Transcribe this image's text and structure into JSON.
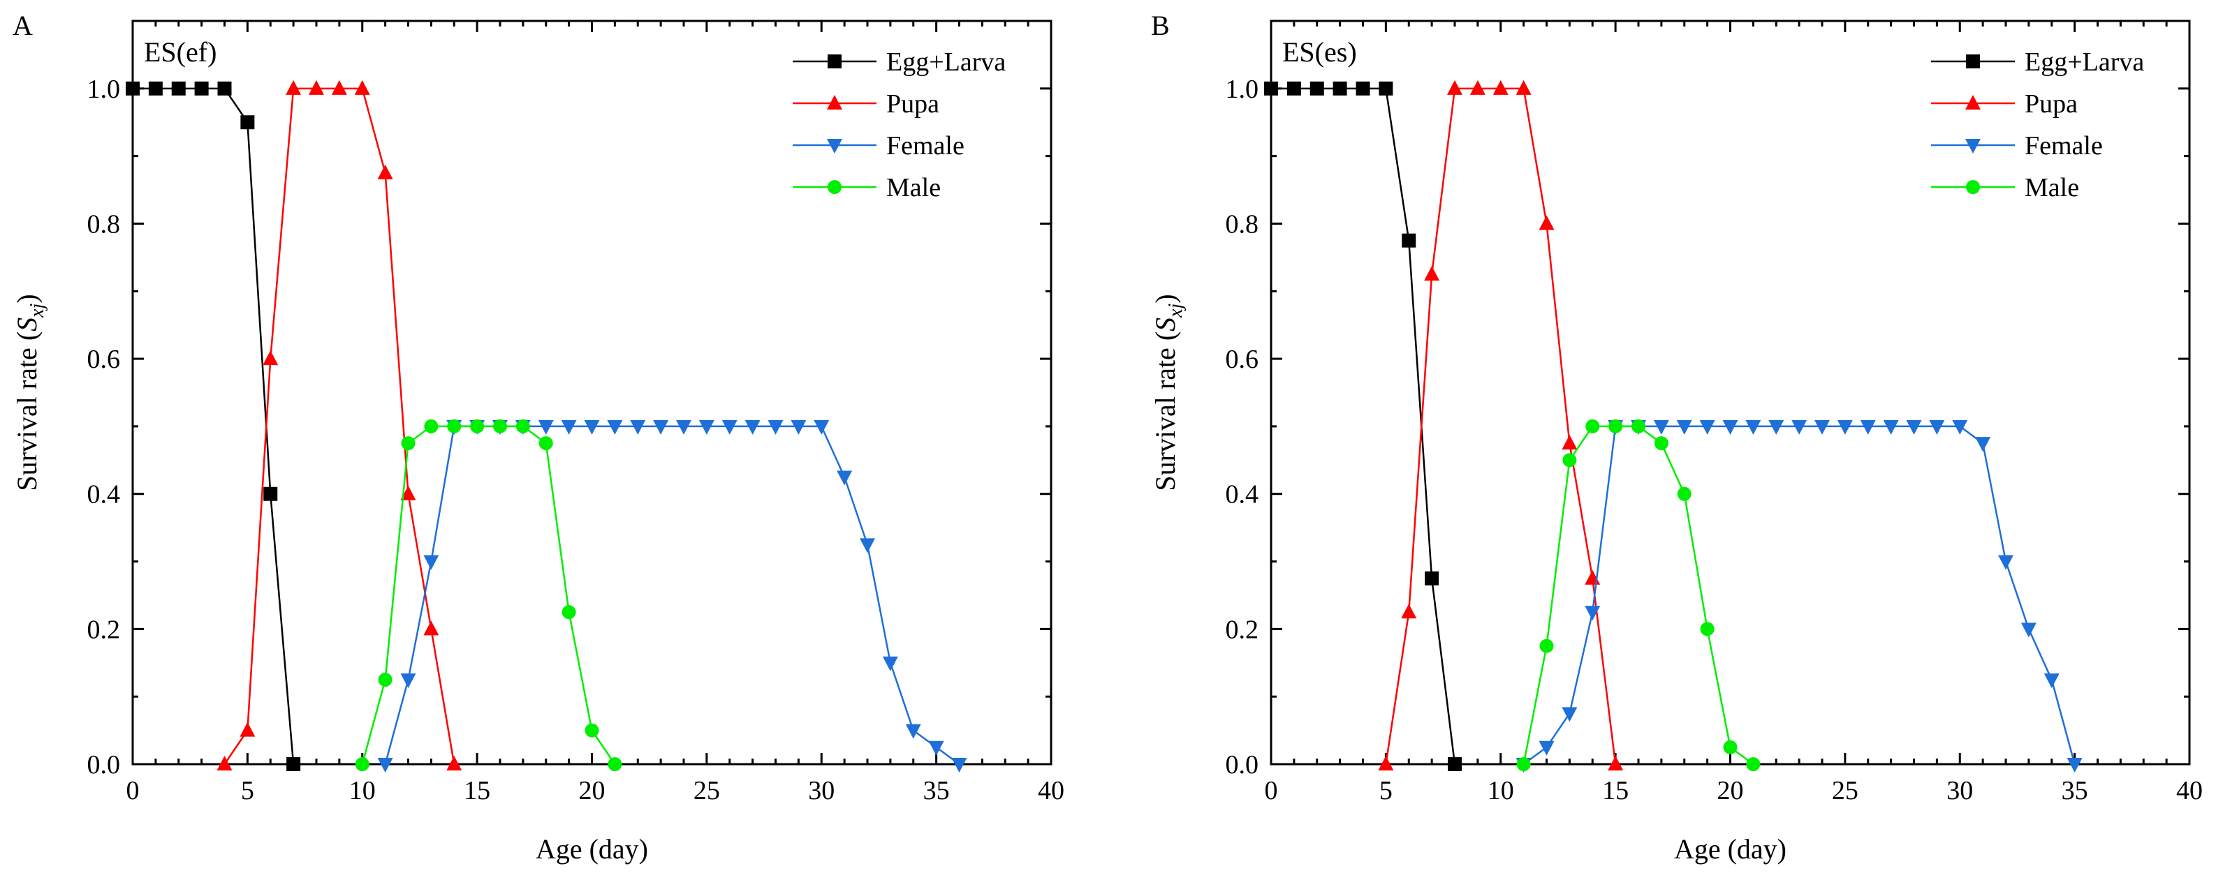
{
  "chart_data": [
    {
      "type": "line",
      "panel_label": "A",
      "treatment_label": "ES(ef)",
      "xlabel": "Age (day)",
      "ylabel_main": "Survival rate (",
      "ylabel_var": "S",
      "ylabel_sub": "xj",
      "ylabel_close": ")",
      "xlim": [
        0,
        40
      ],
      "ylim": [
        0,
        1.1
      ],
      "xticks": [
        0,
        5,
        10,
        15,
        20,
        25,
        30,
        35,
        40
      ],
      "yticks": [
        0.0,
        0.2,
        0.4,
        0.6,
        0.8,
        1.0
      ],
      "xtick_labels": [
        "0",
        "5",
        "10",
        "15",
        "20",
        "25",
        "30",
        "35",
        "40"
      ],
      "ytick_labels": [
        "0.0",
        "0.2",
        "0.4",
        "0.6",
        "0.8",
        "1.0"
      ],
      "legend_position": "top-right",
      "series": [
        {
          "name": "Egg+Larva",
          "color": "#000000",
          "marker": "square",
          "x": [
            0,
            1,
            2,
            3,
            4,
            5,
            6,
            7
          ],
          "y": [
            1.0,
            1.0,
            1.0,
            1.0,
            1.0,
            0.95,
            0.4,
            0.0
          ]
        },
        {
          "name": "Pupa",
          "color": "#ff0000",
          "marker": "triangle-up",
          "x": [
            4,
            5,
            6,
            7,
            8,
            9,
            10,
            11,
            12,
            13,
            14
          ],
          "y": [
            0.0,
            0.05,
            0.6,
            1.0,
            1.0,
            1.0,
            1.0,
            0.875,
            0.4,
            0.2,
            0.0
          ]
        },
        {
          "name": "Female",
          "color": "#1f6fd8",
          "marker": "triangle-down",
          "x": [
            11,
            12,
            13,
            14,
            15,
            16,
            17,
            18,
            19,
            20,
            21,
            22,
            23,
            24,
            25,
            26,
            27,
            28,
            29,
            30,
            31,
            32,
            33,
            34,
            35,
            36
          ],
          "y": [
            0.0,
            0.125,
            0.3,
            0.5,
            0.5,
            0.5,
            0.5,
            0.5,
            0.5,
            0.5,
            0.5,
            0.5,
            0.5,
            0.5,
            0.5,
            0.5,
            0.5,
            0.5,
            0.5,
            0.5,
            0.425,
            0.325,
            0.15,
            0.05,
            0.025,
            0.0
          ]
        },
        {
          "name": "Male",
          "color": "#00ee00",
          "marker": "circle",
          "x": [
            10,
            11,
            12,
            13,
            14,
            15,
            16,
            17,
            18,
            19,
            20,
            21
          ],
          "y": [
            0.0,
            0.125,
            0.475,
            0.5,
            0.5,
            0.5,
            0.5,
            0.5,
            0.475,
            0.225,
            0.05,
            0.0
          ]
        }
      ]
    },
    {
      "type": "line",
      "panel_label": "B",
      "treatment_label": "ES(es)",
      "xlabel": "Age (day)",
      "ylabel_main": "Survival rate (",
      "ylabel_var": "S",
      "ylabel_sub": "xj",
      "ylabel_close": ")",
      "xlim": [
        0,
        40
      ],
      "ylim": [
        0,
        1.1
      ],
      "xticks": [
        0,
        5,
        10,
        15,
        20,
        25,
        30,
        35,
        40
      ],
      "yticks": [
        0.0,
        0.2,
        0.4,
        0.6,
        0.8,
        1.0
      ],
      "xtick_labels": [
        "0",
        "5",
        "10",
        "15",
        "20",
        "25",
        "30",
        "35",
        "40"
      ],
      "ytick_labels": [
        "0.0",
        "0.2",
        "0.4",
        "0.6",
        "0.8",
        "1.0"
      ],
      "legend_position": "top-right",
      "series": [
        {
          "name": "Egg+Larva",
          "color": "#000000",
          "marker": "square",
          "x": [
            0,
            1,
            2,
            3,
            4,
            5,
            6,
            7,
            8
          ],
          "y": [
            1.0,
            1.0,
            1.0,
            1.0,
            1.0,
            1.0,
            0.775,
            0.275,
            0.0
          ]
        },
        {
          "name": "Pupa",
          "color": "#ff0000",
          "marker": "triangle-up",
          "x": [
            5,
            6,
            7,
            8,
            9,
            10,
            11,
            12,
            13,
            14,
            15
          ],
          "y": [
            0.0,
            0.225,
            0.725,
            1.0,
            1.0,
            1.0,
            1.0,
            0.8,
            0.475,
            0.275,
            0.0
          ]
        },
        {
          "name": "Female",
          "color": "#1f6fd8",
          "marker": "triangle-down",
          "x": [
            11,
            12,
            13,
            14,
            15,
            16,
            17,
            18,
            19,
            20,
            21,
            22,
            23,
            24,
            25,
            26,
            27,
            28,
            29,
            30,
            31,
            32,
            33,
            34,
            35
          ],
          "y": [
            0.0,
            0.025,
            0.075,
            0.225,
            0.5,
            0.5,
            0.5,
            0.5,
            0.5,
            0.5,
            0.5,
            0.5,
            0.5,
            0.5,
            0.5,
            0.5,
            0.5,
            0.5,
            0.5,
            0.5,
            0.475,
            0.3,
            0.2,
            0.125,
            0.0
          ]
        },
        {
          "name": "Male",
          "color": "#00ee00",
          "marker": "circle",
          "x": [
            11,
            12,
            13,
            14,
            15,
            16,
            17,
            18,
            19,
            20,
            21
          ],
          "y": [
            0.0,
            0.175,
            0.45,
            0.5,
            0.5,
            0.5,
            0.475,
            0.4,
            0.2,
            0.025,
            0.0
          ]
        }
      ]
    }
  ]
}
